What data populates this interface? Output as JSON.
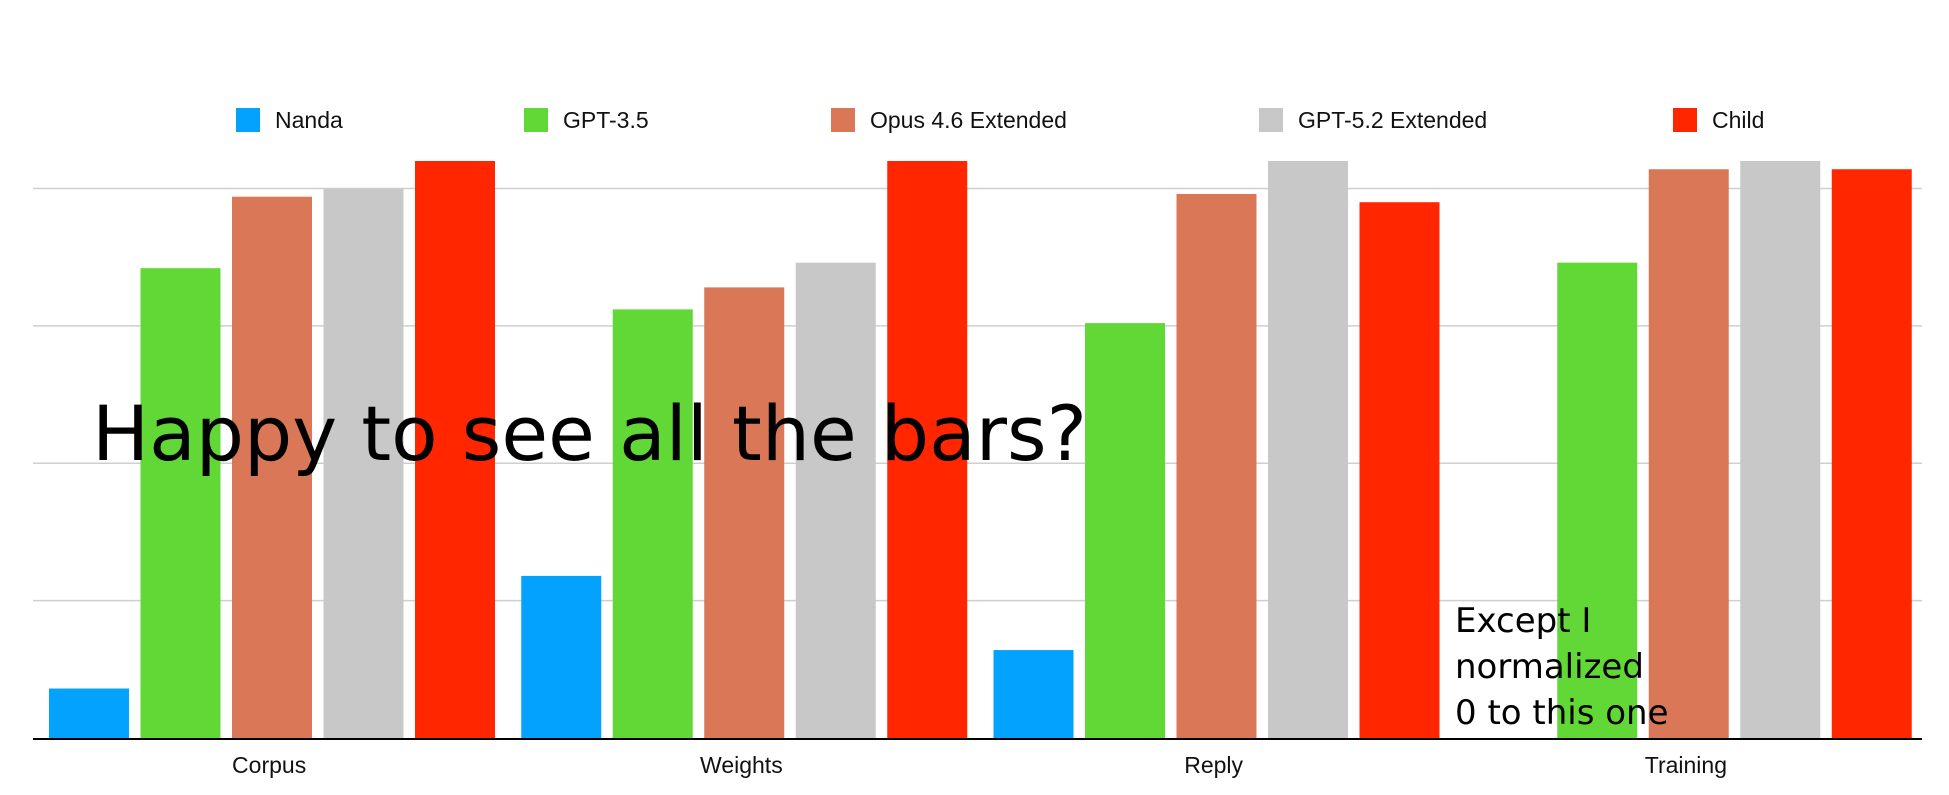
{
  "chart_data": {
    "type": "bar",
    "title": "",
    "xlabel": "",
    "ylabel": "",
    "categories": [
      "Corpus",
      "Weights",
      "Reply",
      "Training"
    ],
    "series": [
      {
        "name": "Nanda",
        "color": "#04A2FF",
        "values": [
          9,
          29.5,
          16,
          0
        ]
      },
      {
        "name": "GPT-3.5",
        "color": "#61D836",
        "values": [
          85.5,
          78,
          75.5,
          86.5
        ]
      },
      {
        "name": "Opus 4.6 Extended",
        "color": "#D97757",
        "values": [
          98.5,
          82,
          99,
          103.5
        ]
      },
      {
        "name": "GPT-5.2 Extended",
        "color": "#C8C8C8",
        "values": [
          100,
          86.5,
          105,
          105
        ]
      },
      {
        "name": "Child",
        "color": "#FF2600",
        "values": [
          105,
          105,
          97.5,
          103.5
        ]
      }
    ],
    "ylim": [
      0,
      105
    ],
    "yticks": [
      0,
      25,
      50,
      75,
      100
    ],
    "grid": true,
    "legend_position": "top",
    "annotations": {
      "main": "Happy to see all the bars?",
      "note_lines": [
        "Except I",
        "normalized",
        "0 to this one"
      ]
    }
  }
}
